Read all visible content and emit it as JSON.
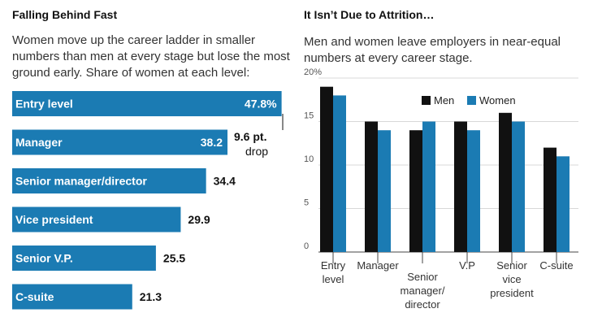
{
  "left": {
    "title": "Falling Behind Fast",
    "subtitle": "Women move up the career ladder in smaller numbers than men at every stage but lose the most ground early. Share of women at each level:",
    "annotation": {
      "line1": "9.6 pt.",
      "line2": "drop"
    },
    "colors": {
      "bar": "#1b7bb3",
      "label_inside": "#ffffff",
      "label_outside": "#111111"
    }
  },
  "right": {
    "title": "It Isn’t Due to Attrition…",
    "subtitle": "Men and women leave employers in near-equal numbers at every career stage.",
    "colors": {
      "men": "#111111",
      "women": "#1b7bb3",
      "grid": "#d8d8d8"
    }
  },
  "chart_data": [
    {
      "type": "bar",
      "orientation": "horizontal",
      "title": "Falling Behind Fast",
      "categories": [
        "Entry level",
        "Manager",
        "Senior manager/director",
        "Vice president",
        "Senior V.P.",
        "C-suite"
      ],
      "values": [
        47.8,
        38.2,
        34.4,
        29.9,
        25.5,
        21.3
      ],
      "value_labels": [
        "47.8%",
        "38.2",
        "34.4",
        "29.9",
        "25.5",
        "21.3"
      ],
      "xlim": [
        0,
        48
      ],
      "annotation": "9.6 pt. drop"
    },
    {
      "type": "bar",
      "title": "It Isn’t Due to Attrition…",
      "categories": [
        "Entry\nlevel",
        "Manager",
        "Senior\nmanager/\ndirector",
        "V.P",
        "Senior\nvice\npresident",
        "C-suite"
      ],
      "series": [
        {
          "name": "Men",
          "values": [
            19,
            15,
            14,
            15,
            16,
            12
          ]
        },
        {
          "name": "Women",
          "values": [
            18,
            14,
            15,
            14,
            15,
            11
          ]
        }
      ],
      "ylim": [
        0,
        20
      ],
      "yticks": [
        0,
        5,
        10,
        15,
        20
      ],
      "ytick_labels": [
        "0",
        "5",
        "10",
        "15",
        "20%"
      ],
      "grid": true,
      "legend": "top-right"
    }
  ]
}
